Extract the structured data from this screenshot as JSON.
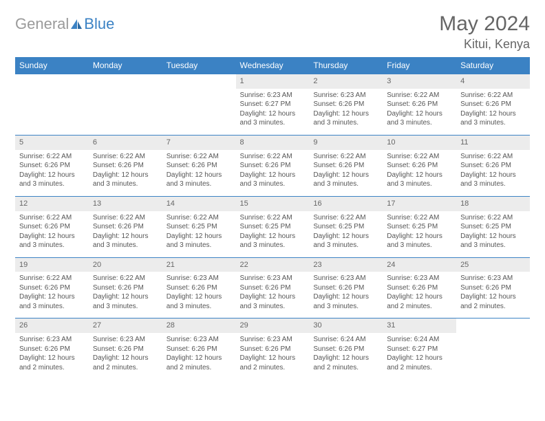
{
  "logo": {
    "part1": "General",
    "part2": "Blue"
  },
  "title": "May 2024",
  "location": "Kitui, Kenya",
  "colors": {
    "header_bg": "#3b82c4",
    "header_text": "#ffffff",
    "daynum_bg": "#ececec",
    "border": "#3b82c4",
    "logo_gray": "#9a9a9a",
    "logo_blue": "#3b82c4"
  },
  "day_headers": [
    "Sunday",
    "Monday",
    "Tuesday",
    "Wednesday",
    "Thursday",
    "Friday",
    "Saturday"
  ],
  "weeks": [
    [
      null,
      null,
      null,
      {
        "n": "1",
        "sr": "6:23 AM",
        "ss": "6:27 PM",
        "dl": "12 hours and 3 minutes."
      },
      {
        "n": "2",
        "sr": "6:23 AM",
        "ss": "6:26 PM",
        "dl": "12 hours and 3 minutes."
      },
      {
        "n": "3",
        "sr": "6:22 AM",
        "ss": "6:26 PM",
        "dl": "12 hours and 3 minutes."
      },
      {
        "n": "4",
        "sr": "6:22 AM",
        "ss": "6:26 PM",
        "dl": "12 hours and 3 minutes."
      }
    ],
    [
      {
        "n": "5",
        "sr": "6:22 AM",
        "ss": "6:26 PM",
        "dl": "12 hours and 3 minutes."
      },
      {
        "n": "6",
        "sr": "6:22 AM",
        "ss": "6:26 PM",
        "dl": "12 hours and 3 minutes."
      },
      {
        "n": "7",
        "sr": "6:22 AM",
        "ss": "6:26 PM",
        "dl": "12 hours and 3 minutes."
      },
      {
        "n": "8",
        "sr": "6:22 AM",
        "ss": "6:26 PM",
        "dl": "12 hours and 3 minutes."
      },
      {
        "n": "9",
        "sr": "6:22 AM",
        "ss": "6:26 PM",
        "dl": "12 hours and 3 minutes."
      },
      {
        "n": "10",
        "sr": "6:22 AM",
        "ss": "6:26 PM",
        "dl": "12 hours and 3 minutes."
      },
      {
        "n": "11",
        "sr": "6:22 AM",
        "ss": "6:26 PM",
        "dl": "12 hours and 3 minutes."
      }
    ],
    [
      {
        "n": "12",
        "sr": "6:22 AM",
        "ss": "6:26 PM",
        "dl": "12 hours and 3 minutes."
      },
      {
        "n": "13",
        "sr": "6:22 AM",
        "ss": "6:26 PM",
        "dl": "12 hours and 3 minutes."
      },
      {
        "n": "14",
        "sr": "6:22 AM",
        "ss": "6:25 PM",
        "dl": "12 hours and 3 minutes."
      },
      {
        "n": "15",
        "sr": "6:22 AM",
        "ss": "6:25 PM",
        "dl": "12 hours and 3 minutes."
      },
      {
        "n": "16",
        "sr": "6:22 AM",
        "ss": "6:25 PM",
        "dl": "12 hours and 3 minutes."
      },
      {
        "n": "17",
        "sr": "6:22 AM",
        "ss": "6:25 PM",
        "dl": "12 hours and 3 minutes."
      },
      {
        "n": "18",
        "sr": "6:22 AM",
        "ss": "6:25 PM",
        "dl": "12 hours and 3 minutes."
      }
    ],
    [
      {
        "n": "19",
        "sr": "6:22 AM",
        "ss": "6:26 PM",
        "dl": "12 hours and 3 minutes."
      },
      {
        "n": "20",
        "sr": "6:22 AM",
        "ss": "6:26 PM",
        "dl": "12 hours and 3 minutes."
      },
      {
        "n": "21",
        "sr": "6:23 AM",
        "ss": "6:26 PM",
        "dl": "12 hours and 3 minutes."
      },
      {
        "n": "22",
        "sr": "6:23 AM",
        "ss": "6:26 PM",
        "dl": "12 hours and 3 minutes."
      },
      {
        "n": "23",
        "sr": "6:23 AM",
        "ss": "6:26 PM",
        "dl": "12 hours and 3 minutes."
      },
      {
        "n": "24",
        "sr": "6:23 AM",
        "ss": "6:26 PM",
        "dl": "12 hours and 2 minutes."
      },
      {
        "n": "25",
        "sr": "6:23 AM",
        "ss": "6:26 PM",
        "dl": "12 hours and 2 minutes."
      }
    ],
    [
      {
        "n": "26",
        "sr": "6:23 AM",
        "ss": "6:26 PM",
        "dl": "12 hours and 2 minutes."
      },
      {
        "n": "27",
        "sr": "6:23 AM",
        "ss": "6:26 PM",
        "dl": "12 hours and 2 minutes."
      },
      {
        "n": "28",
        "sr": "6:23 AM",
        "ss": "6:26 PM",
        "dl": "12 hours and 2 minutes."
      },
      {
        "n": "29",
        "sr": "6:23 AM",
        "ss": "6:26 PM",
        "dl": "12 hours and 2 minutes."
      },
      {
        "n": "30",
        "sr": "6:24 AM",
        "ss": "6:26 PM",
        "dl": "12 hours and 2 minutes."
      },
      {
        "n": "31",
        "sr": "6:24 AM",
        "ss": "6:27 PM",
        "dl": "12 hours and 2 minutes."
      },
      null
    ]
  ],
  "labels": {
    "sunrise": "Sunrise:",
    "sunset": "Sunset:",
    "daylight": "Daylight:"
  }
}
